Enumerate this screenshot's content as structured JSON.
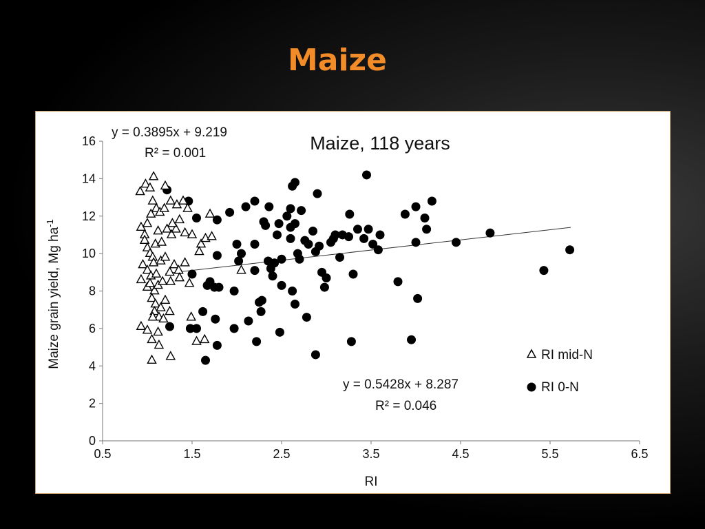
{
  "slide": {
    "title": "Maize"
  },
  "chart_data": {
    "type": "scatter",
    "title": "Maize, 118 years",
    "xlabel": "RI",
    "ylabel": "Maize grain yield, Mg ha-1",
    "xlim": [
      0.5,
      6.5
    ],
    "ylim": [
      0,
      16
    ],
    "xticks": [
      "0.5",
      "1.5",
      "2.5",
      "3.5",
      "4.5",
      "5.5",
      "6.5"
    ],
    "yticks": [
      "0",
      "2",
      "4",
      "6",
      "8",
      "10",
      "12",
      "14",
      "16"
    ],
    "grid": false,
    "legend_position": "right",
    "series": [
      {
        "name": "RI mid-N",
        "marker": "open-triangle",
        "color": "#000000",
        "points": [
          [
            0.92,
            13.3
          ],
          [
            0.98,
            13.7
          ],
          [
            1.03,
            13.5
          ],
          [
            1.07,
            14.1
          ],
          [
            1.2,
            13.6
          ],
          [
            0.93,
            11.4
          ],
          [
            0.97,
            11.0
          ],
          [
            1.0,
            11.6
          ],
          [
            1.04,
            12.1
          ],
          [
            1.06,
            12.8
          ],
          [
            1.1,
            12.4
          ],
          [
            1.14,
            12.2
          ],
          [
            1.19,
            12.4
          ],
          [
            1.26,
            12.8
          ],
          [
            1.33,
            12.6
          ],
          [
            1.4,
            12.8
          ],
          [
            1.45,
            12.4
          ],
          [
            0.97,
            10.7
          ],
          [
            1.0,
            10.3
          ],
          [
            1.03,
            10.0
          ],
          [
            1.06,
            9.8
          ],
          [
            1.09,
            10.5
          ],
          [
            1.12,
            11.2
          ],
          [
            1.16,
            10.6
          ],
          [
            1.22,
            11.3
          ],
          [
            1.27,
            11.0
          ],
          [
            1.32,
            11.3
          ],
          [
            1.36,
            11.8
          ],
          [
            1.42,
            11.1
          ],
          [
            1.5,
            11.0
          ],
          [
            1.6,
            10.5
          ],
          [
            1.65,
            10.8
          ],
          [
            1.72,
            10.9
          ],
          [
            0.95,
            9.4
          ],
          [
            1.0,
            9.1
          ],
          [
            1.04,
            8.8
          ],
          [
            1.07,
            9.5
          ],
          [
            1.1,
            8.9
          ],
          [
            1.15,
            9.6
          ],
          [
            1.2,
            9.8
          ],
          [
            1.25,
            9.0
          ],
          [
            1.3,
            9.4
          ],
          [
            1.35,
            9.1
          ],
          [
            1.42,
            9.5
          ],
          [
            1.28,
            11.6
          ],
          [
            1.58,
            10.1
          ],
          [
            0.93,
            8.6
          ],
          [
            1.0,
            8.2
          ],
          [
            1.03,
            8.4
          ],
          [
            1.08,
            8.0
          ],
          [
            1.12,
            8.3
          ],
          [
            1.17,
            8.5
          ],
          [
            1.26,
            8.5
          ],
          [
            1.36,
            8.7
          ],
          [
            1.47,
            8.4
          ],
          [
            2.05,
            9.1
          ],
          [
            1.05,
            7.6
          ],
          [
            1.09,
            7.3
          ],
          [
            1.15,
            7.1
          ],
          [
            1.2,
            7.5
          ],
          [
            1.08,
            6.9
          ],
          [
            1.13,
            6.6
          ],
          [
            1.18,
            6.5
          ],
          [
            1.25,
            6.9
          ],
          [
            1.06,
            6.6
          ],
          [
            0.93,
            6.1
          ],
          [
            1.0,
            5.9
          ],
          [
            1.05,
            5.4
          ],
          [
            1.12,
            5.8
          ],
          [
            1.13,
            5.1
          ],
          [
            1.26,
            4.5
          ],
          [
            1.05,
            4.3
          ],
          [
            1.49,
            6.6
          ],
          [
            1.55,
            5.3
          ],
          [
            1.64,
            5.4
          ],
          [
            1.7,
            12.1
          ]
        ]
      },
      {
        "name": "RI 0-N",
        "marker": "filled-circle",
        "color": "#000000",
        "points": [
          [
            1.22,
            13.4
          ],
          [
            1.46,
            12.8
          ],
          [
            1.55,
            11.9
          ],
          [
            1.78,
            11.8
          ],
          [
            1.92,
            12.2
          ],
          [
            2.1,
            12.5
          ],
          [
            2.2,
            12.8
          ],
          [
            2.36,
            12.5
          ],
          [
            2.6,
            12.4
          ],
          [
            2.62,
            13.6
          ],
          [
            2.65,
            13.8
          ],
          [
            2.9,
            13.2
          ],
          [
            3.45,
            14.2
          ],
          [
            3.26,
            12.1
          ],
          [
            3.88,
            12.1
          ],
          [
            4.0,
            12.5
          ],
          [
            4.1,
            11.9
          ],
          [
            4.18,
            12.8
          ],
          [
            1.5,
            8.9
          ],
          [
            1.62,
            6.9
          ],
          [
            1.67,
            8.3
          ],
          [
            1.7,
            8.5
          ],
          [
            1.75,
            8.2
          ],
          [
            1.78,
            9.9
          ],
          [
            1.8,
            8.2
          ],
          [
            1.76,
            6.5
          ],
          [
            1.78,
            5.1
          ],
          [
            1.65,
            4.3
          ],
          [
            1.48,
            6.0
          ],
          [
            1.55,
            6.0
          ],
          [
            1.25,
            6.1
          ],
          [
            1.97,
            8.0
          ],
          [
            2.0,
            10.5
          ],
          [
            2.02,
            9.6
          ],
          [
            2.05,
            10.0
          ],
          [
            2.13,
            6.4
          ],
          [
            2.2,
            9.1
          ],
          [
            2.2,
            10.5
          ],
          [
            2.22,
            5.3
          ],
          [
            2.25,
            7.4
          ],
          [
            2.28,
            7.5
          ],
          [
            2.3,
            11.7
          ],
          [
            2.32,
            11.5
          ],
          [
            2.35,
            9.6
          ],
          [
            2.38,
            9.2
          ],
          [
            2.4,
            8.8
          ],
          [
            2.42,
            9.5
          ],
          [
            2.47,
            11.6
          ],
          [
            2.5,
            9.7
          ],
          [
            2.5,
            8.3
          ],
          [
            2.48,
            5.8
          ],
          [
            2.6,
            11.4
          ],
          [
            2.6,
            10.8
          ],
          [
            2.62,
            8.0
          ],
          [
            2.65,
            11.6
          ],
          [
            2.68,
            10.0
          ],
          [
            2.7,
            9.7
          ],
          [
            2.72,
            12.3
          ],
          [
            2.76,
            10.7
          ],
          [
            2.8,
            10.5
          ],
          [
            2.85,
            11.2
          ],
          [
            2.88,
            10.1
          ],
          [
            2.92,
            10.4
          ],
          [
            2.95,
            9.0
          ],
          [
            2.98,
            8.2
          ],
          [
            3.0,
            8.7
          ],
          [
            3.05,
            10.6
          ],
          [
            3.1,
            11.0
          ],
          [
            3.15,
            9.8
          ],
          [
            3.18,
            11.0
          ],
          [
            3.25,
            10.9
          ],
          [
            3.3,
            8.9
          ],
          [
            3.35,
            11.3
          ],
          [
            3.42,
            10.8
          ],
          [
            3.47,
            11.3
          ],
          [
            3.52,
            10.5
          ],
          [
            3.58,
            10.2
          ],
          [
            3.6,
            11.0
          ],
          [
            2.65,
            7.3
          ],
          [
            2.78,
            6.6
          ],
          [
            2.88,
            4.6
          ],
          [
            3.28,
            5.3
          ],
          [
            3.8,
            8.5
          ],
          [
            3.95,
            5.4
          ],
          [
            4.0,
            10.6
          ],
          [
            4.02,
            7.6
          ],
          [
            4.12,
            11.3
          ],
          [
            4.45,
            10.6
          ],
          [
            4.83,
            11.1
          ],
          [
            5.43,
            9.1
          ],
          [
            5.72,
            10.2
          ],
          [
            1.97,
            6.0
          ],
          [
            2.27,
            6.9
          ],
          [
            2.56,
            12.0
          ],
          [
            2.45,
            11.0
          ],
          [
            3.08,
            10.8
          ]
        ]
      }
    ],
    "trendlines": [
      {
        "series": "RI mid-N",
        "slope": 0.3895,
        "intercept": 9.219,
        "equation": "y = 0.3895x + 9.219",
        "r2": "R² = 0.001"
      },
      {
        "series": "RI 0-N",
        "slope": 0.5428,
        "intercept": 8.287,
        "x_range": [
          1.2,
          5.73
        ],
        "equation": "y = 0.5428x + 8.287",
        "r2": "R² = 0.046"
      }
    ],
    "legend": [
      "RI mid-N",
      "RI 0-N"
    ]
  }
}
